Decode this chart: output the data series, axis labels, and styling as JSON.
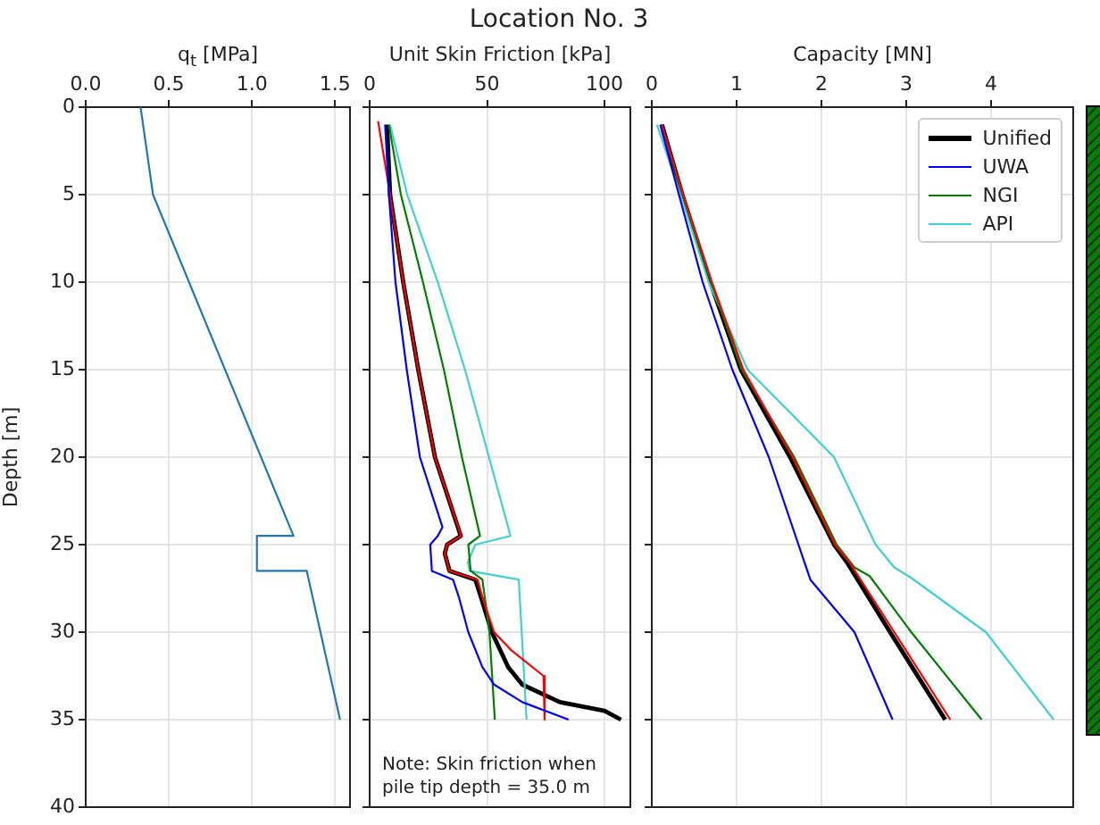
{
  "chart_data": [
    {
      "type": "line",
      "xlabel": "q$_{t}$ [MPa]",
      "ylabel": "Depth [m]",
      "xlim": [
        0,
        1.59
      ],
      "xticks": [
        {
          "value": 0,
          "label": "0.0"
        },
        {
          "value": 0.5,
          "label": "0.5"
        },
        {
          "value": 1,
          "label": "1.0"
        },
        {
          "value": 1.5,
          "label": "1.5"
        }
      ],
      "ylim": [
        40,
        0
      ],
      "yticks": [
        0,
        5,
        10,
        15,
        20,
        25,
        30,
        35,
        40
      ],
      "grid": true,
      "series": [
        {
          "color": "#1f77b4",
          "x": [
            0.33,
            0.405,
            1.25,
            1.03,
            1.03,
            1.33,
            1.53
          ],
          "values": [
            0,
            5,
            24.5,
            24.5,
            26.5,
            26.5,
            35
          ]
        }
      ]
    },
    {
      "type": "line",
      "title": "Location No. 3",
      "xlabel": "Unit Skin Friction [kPa]",
      "xlim": [
        0,
        111
      ],
      "xticks": [
        0,
        50,
        100
      ],
      "ylim": [
        40,
        0
      ],
      "yticks": [
        0,
        5,
        10,
        15,
        20,
        25,
        30,
        35,
        40
      ],
      "grid": true,
      "tick_labels": "x",
      "annotations": [
        "Note: Skin friction when\npile tip depth = 35.0 m"
      ],
      "series": [
        {
          "color": "#000000",
          "x": [
            7.4,
            8.7,
            14.3,
            20.7,
            27.8,
            38.8,
            33,
            32,
            34,
            45,
            47.4,
            52,
            59,
            65,
            81,
            100,
            107
          ],
          "values": [
            1,
            5,
            10,
            15,
            20,
            24.5,
            25,
            25.5,
            26.5,
            27,
            28,
            30,
            32,
            33,
            34,
            34.5,
            35
          ]
        },
        {
          "color": "#0000ff",
          "x": [
            6.6,
            8.2,
            11,
            15.8,
            21.4,
            31,
            29,
            25.8,
            26.5,
            35.5,
            38,
            42,
            48,
            53,
            65,
            84.7
          ],
          "values": [
            1,
            5,
            10,
            15,
            20,
            24,
            24.5,
            25,
            26.5,
            27,
            28,
            30,
            32,
            33,
            34,
            35
          ]
        },
        {
          "color": "#ff0000",
          "x": [
            3.6,
            8.7,
            14.3,
            20.7,
            27.8,
            39,
            33,
            32,
            34,
            46,
            48,
            53,
            60,
            74,
            74.5
          ],
          "values": [
            0.8,
            5,
            10,
            15,
            20,
            24.5,
            25,
            25.5,
            26.5,
            27,
            28,
            30,
            31,
            32.5,
            35
          ]
        },
        {
          "color": "#008000",
          "x": [
            8.2,
            13.3,
            22.7,
            31.6,
            39.3,
            47,
            42,
            43,
            48,
            51,
            53.3
          ],
          "values": [
            1,
            5,
            10,
            15,
            20,
            24.5,
            25,
            26.5,
            27,
            30,
            35
          ]
        },
        {
          "color": "#40d0d0",
          "x": [
            8.7,
            16,
            29,
            40.6,
            50.8,
            60,
            45,
            41.8,
            42.6,
            63.5,
            66.8
          ],
          "values": [
            1,
            5,
            10,
            15,
            20,
            24.5,
            25,
            26,
            26.5,
            27,
            35
          ]
        }
      ]
    },
    {
      "type": "line",
      "xlabel": "Capacity [MN]",
      "xlim": [
        0,
        4.97
      ],
      "xticks": [
        0,
        1,
        2,
        3,
        4
      ],
      "ylim": [
        40,
        0
      ],
      "yticks": [
        0,
        5,
        10,
        15,
        20,
        25,
        30,
        35,
        40
      ],
      "grid": true,
      "tick_labels": "x",
      "legend": "top right",
      "series": [
        {
          "name": "Unified",
          "color": "#000000",
          "x": [
            0.12,
            0.36,
            0.69,
            1.05,
            1.63,
            2.15,
            2.3,
            2.81,
            3.46
          ],
          "values": [
            1,
            5,
            10,
            15,
            20,
            25,
            26,
            30,
            35
          ]
        },
        {
          "name": "UWA",
          "color": "#0000ff",
          "x": [
            0.1,
            0.32,
            0.6,
            0.95,
            1.38,
            1.73,
            1.8,
            1.87,
            2.39,
            2.84
          ],
          "values": [
            1,
            5,
            10,
            15,
            20,
            25,
            26,
            27,
            30,
            35
          ]
        },
        {
          "color": "#ff0000",
          "x": [
            0.12,
            0.37,
            0.71,
            1.08,
            1.66,
            2.16,
            2.33,
            2.86,
            3.52
          ],
          "values": [
            1,
            5,
            10,
            15,
            20,
            25,
            26,
            30,
            35
          ]
        },
        {
          "name": "NGI",
          "color": "#008000",
          "x": [
            0.11,
            0.36,
            0.7,
            1.06,
            1.68,
            2.18,
            2.39,
            2.57,
            3.06,
            3.89
          ],
          "values": [
            1,
            5,
            10,
            15,
            20,
            25,
            26.3,
            26.8,
            30,
            35
          ]
        },
        {
          "name": "API",
          "color": "#40d0d0",
          "x": [
            0.06,
            0.34,
            0.67,
            1.13,
            2.15,
            2.64,
            2.86,
            3.06,
            3.94,
            4.74
          ],
          "values": [
            1,
            5,
            10,
            15,
            20,
            25,
            26.3,
            26.9,
            30,
            35
          ]
        }
      ]
    }
  ]
}
